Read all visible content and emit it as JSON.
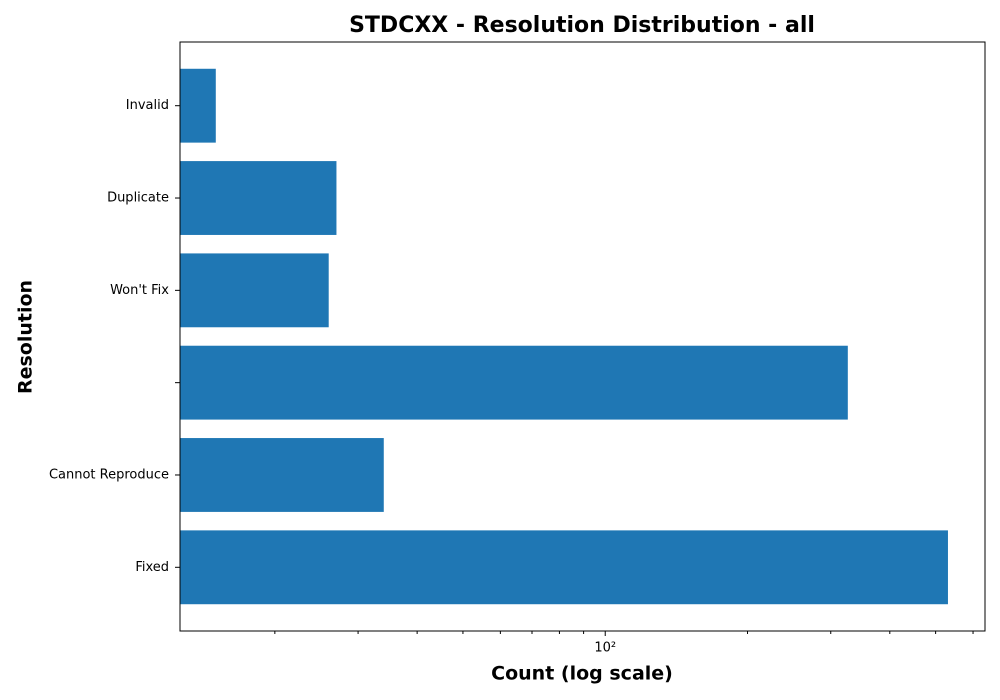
{
  "chart_data": {
    "type": "barh",
    "title": "STDCXX - Resolution Distribution - all",
    "xlabel": "Count (log scale)",
    "ylabel": "Resolution",
    "categories": [
      "Fixed",
      "Cannot Reproduce",
      null,
      "Won't Fix",
      "Duplicate",
      "Invalid"
    ],
    "values": [
      531,
      34,
      326,
      26,
      27,
      15
    ],
    "color": "#1f77b4",
    "xscale": "log",
    "xlim": [
      12.6,
      636
    ],
    "xticks": [
      {
        "value": 100,
        "label": "10²"
      }
    ],
    "xminorticks": [
      20,
      30,
      40,
      50,
      60,
      70,
      80,
      90,
      200,
      300,
      400,
      500,
      600
    ]
  }
}
